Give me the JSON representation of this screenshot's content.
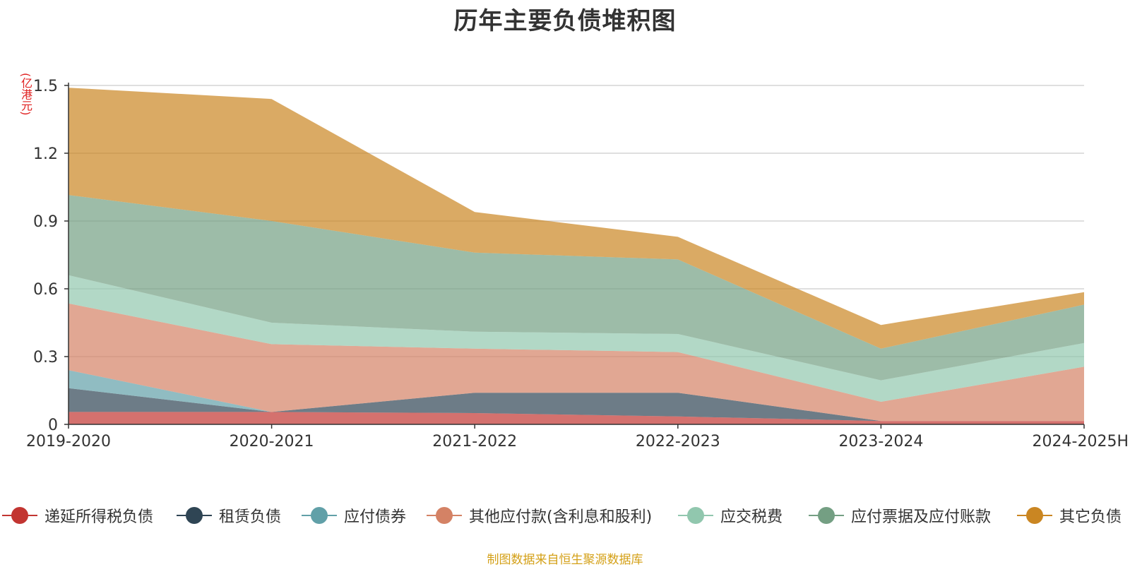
{
  "title": "历年主要负债堆积图",
  "source_note": "制图数据来自恒生聚源数据库",
  "chart_data": {
    "type": "area",
    "stacked": true,
    "title": "历年主要负债堆积图",
    "ylabel": "亿港元",
    "xlabel": "",
    "ylim": [
      0,
      1.5
    ],
    "y_ticks": [
      0,
      0.3,
      0.6,
      0.9,
      1.2,
      1.5
    ],
    "y_tick_labels": [
      "0",
      "0.3",
      "0.6",
      "0.9",
      "1.2",
      "1.5"
    ],
    "grid": true,
    "legend_position": "bottom",
    "categories": [
      "2019-2020",
      "2020-2021",
      "2021-2022",
      "2022-2023",
      "2023-2024",
      "2024-2025H"
    ],
    "series": [
      {
        "name": "递延所得税负债",
        "color": "#c23531",
        "values": [
          0.055,
          0.055,
          0.05,
          0.035,
          0.015,
          0.015
        ]
      },
      {
        "name": "租赁负债",
        "color": "#2f4554",
        "values": [
          0.105,
          0.0,
          0.09,
          0.105,
          0.0,
          0.0
        ]
      },
      {
        "name": "应付债券",
        "color": "#61a0a8",
        "values": [
          0.08,
          0.0,
          0.0,
          0.0,
          0.0,
          0.0
        ]
      },
      {
        "name": "其他应付款(含利息和股利)",
        "color": "#d48265",
        "values": [
          0.295,
          0.3,
          0.195,
          0.18,
          0.085,
          0.24
        ]
      },
      {
        "name": "应交税费",
        "color": "#91c7ae",
        "values": [
          0.125,
          0.095,
          0.075,
          0.08,
          0.095,
          0.105
        ]
      },
      {
        "name": "应付票据及应付账款",
        "color": "#749f83",
        "values": [
          0.355,
          0.45,
          0.35,
          0.33,
          0.14,
          0.17
        ]
      },
      {
        "name": "其它负债",
        "color": "#ca8622",
        "values": [
          0.475,
          0.54,
          0.18,
          0.1,
          0.105,
          0.055
        ]
      }
    ]
  }
}
